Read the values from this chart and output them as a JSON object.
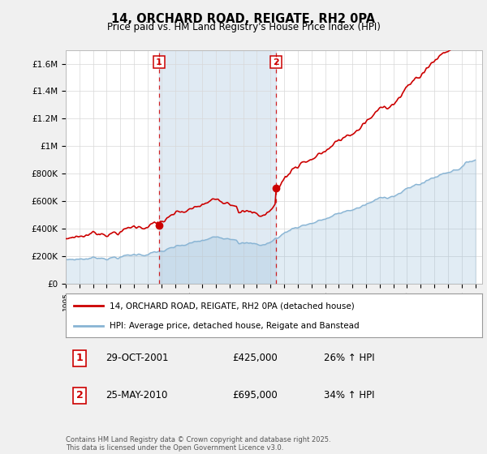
{
  "title": "14, ORCHARD ROAD, REIGATE, RH2 0PA",
  "subtitle": "Price paid vs. HM Land Registry's House Price Index (HPI)",
  "ylim": [
    0,
    1700000
  ],
  "yticks": [
    0,
    200000,
    400000,
    600000,
    800000,
    1000000,
    1200000,
    1400000,
    1600000
  ],
  "ytick_labels": [
    "£0",
    "£200K",
    "£400K",
    "£600K",
    "£800K",
    "£1M",
    "£1.2M",
    "£1.4M",
    "£1.6M"
  ],
  "sale_color": "#cc0000",
  "hpi_color": "#88b4d4",
  "hpi_fill_alpha": 0.25,
  "dashed_line_color": "#cc0000",
  "background_color": "#f0f0f0",
  "plot_bg_color": "#ffffff",
  "shaded_region_color": "#ccdcec",
  "legend_label_sale": "14, ORCHARD ROAD, REIGATE, RH2 0PA (detached house)",
  "legend_label_hpi": "HPI: Average price, detached house, Reigate and Banstead",
  "sale1_date_num": 2001.83,
  "sale1_price": 425000,
  "sale2_date_num": 2010.39,
  "sale2_price": 695000,
  "footnote": "Contains HM Land Registry data © Crown copyright and database right 2025.\nThis data is licensed under the Open Government Licence v3.0."
}
